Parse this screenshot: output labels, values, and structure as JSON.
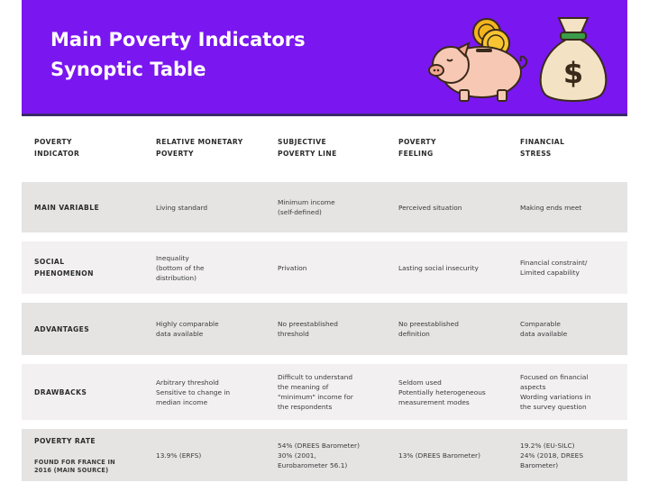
{
  "banner": {
    "title_line1": "Main Poverty Indicators",
    "title_line2": "Synoptic Table",
    "color": "#7a16f0"
  },
  "illustrations": [
    "piggy-bank-with-coins",
    "money-bag-dollar"
  ],
  "table": {
    "headers": [
      "POVERTY\nINDICATOR",
      "RELATIVE MONETARY\nPOVERTY",
      "SUBJECTIVE\nPOVERTY LINE",
      "POVERTY\nFEELING",
      "FINANCIAL\nSTRESS"
    ],
    "rows": [
      {
        "label": "MAIN VARIABLE",
        "cells": [
          "Living standard",
          "Minimum income\n(self-defined)",
          "Perceived situation",
          "Making ends meet"
        ]
      },
      {
        "label": "SOCIAL\nPHENOMENON",
        "cells": [
          "Inequality\n(bottom of the\ndistribution)",
          "Privation",
          "Lasting social insecurity",
          "Financial constraint/\nLimited capability"
        ]
      },
      {
        "label": "ADVANTAGES",
        "cells": [
          "Highly comparable\ndata available",
          "No preestablished\nthreshold",
          "No preestablished\ndefinition",
          "Comparable\ndata available"
        ]
      },
      {
        "label": "DRAWBACKS",
        "cells": [
          "Arbitrary threshold\nSensitive to change in\nmedian income",
          "Difficult to understand\nthe meaning of\n\"minimum\" income for\nthe respondents",
          "Seldom used\nPotentially heterogeneous\nmeasurement modes",
          "Focused on financial\naspects\nWording variations in\nthe survey question"
        ]
      },
      {
        "label": "POVERTY RATE",
        "sublabel": "FOUND FOR FRANCE IN\n2016 (MAIN SOURCE)",
        "cells": [
          "13.9% (ERFS)",
          "54% (DREES Barometer)\n30% (2001,\nEurobarometer 56.1)",
          "13% (DREES Barometer)",
          "19.2% (EU-SILC)\n24% (2018, DREES\nBarometer)"
        ]
      }
    ]
  }
}
